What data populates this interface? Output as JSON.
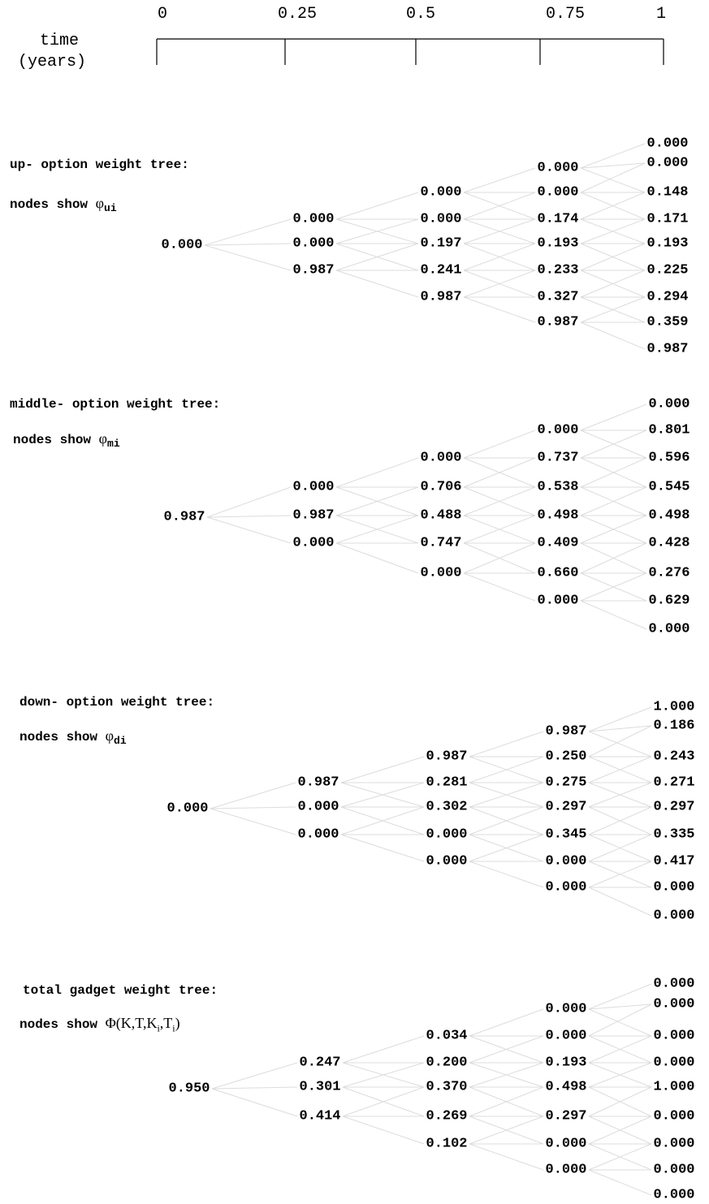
{
  "time_axis": {
    "title_line1": "time",
    "title_line2": "(years)",
    "ticks": [
      "0",
      "0.25",
      "0.5",
      "0.75",
      "1"
    ]
  },
  "trees": [
    {
      "id": "up",
      "title": "up- option weight tree:",
      "subtitle_prefix": "nodes show ",
      "symbol": "φ",
      "subscript": "ui",
      "levels": [
        [
          "0.000"
        ],
        [
          "0.000",
          "0.000",
          "0.987"
        ],
        [
          "0.000",
          "0.000",
          "0.197",
          "0.241",
          "0.987"
        ],
        [
          "0.000",
          "0.000",
          "0.174",
          "0.193",
          "0.233",
          "0.327",
          "0.987"
        ],
        [
          "0.000",
          "0.000",
          "0.148",
          "0.171",
          "0.193",
          "0.225",
          "0.294",
          "0.359",
          "0.987"
        ]
      ]
    },
    {
      "id": "middle",
      "title": "middle- option weight tree:",
      "subtitle_prefix": "nodes show ",
      "symbol": "φ",
      "subscript": "mi",
      "levels": [
        [
          "0.987"
        ],
        [
          "0.000",
          "0.987",
          "0.000"
        ],
        [
          "0.000",
          "0.706",
          "0.488",
          "0.747",
          "0.000"
        ],
        [
          "0.000",
          "0.737",
          "0.538",
          "0.498",
          "0.409",
          "0.660",
          "0.000"
        ],
        [
          "0.000",
          "0.801",
          "0.596",
          "0.545",
          "0.498",
          "0.428",
          "0.276",
          "0.629",
          "0.000"
        ]
      ]
    },
    {
      "id": "down",
      "title": "down- option weight tree:",
      "subtitle_prefix": "nodes show ",
      "symbol": "φ",
      "subscript": "di",
      "levels": [
        [
          "0.000"
        ],
        [
          "0.987",
          "0.000",
          "0.000"
        ],
        [
          "0.987",
          "0.281",
          "0.302",
          "0.000",
          "0.000"
        ],
        [
          "0.987",
          "0.250",
          "0.275",
          "0.297",
          "0.345",
          "0.000",
          "0.000"
        ],
        [
          "1.000",
          "0.186",
          "0.243",
          "0.271",
          "0.297",
          "0.335",
          "0.417",
          "0.000",
          "0.000"
        ]
      ]
    },
    {
      "id": "total",
      "title": "total gadget weight tree:",
      "subtitle_prefix": "nodes show ",
      "formula": {
        "symbol": "Φ",
        "open": "(K,T,K",
        "sub1": "i",
        "mid": ",T",
        "sub2": "i",
        "close": ")"
      },
      "levels": [
        [
          "0.950"
        ],
        [
          "0.247",
          "0.301",
          "0.414"
        ],
        [
          "0.034",
          "0.200",
          "0.370",
          "0.269",
          "0.102"
        ],
        [
          "0.000",
          "0.000",
          "0.193",
          "0.498",
          "0.297",
          "0.000",
          "0.000"
        ],
        [
          "0.000",
          "0.000",
          "0.000",
          "0.000",
          "1.000",
          "0.000",
          "0.000",
          "0.000",
          "0.000"
        ]
      ]
    }
  ]
}
